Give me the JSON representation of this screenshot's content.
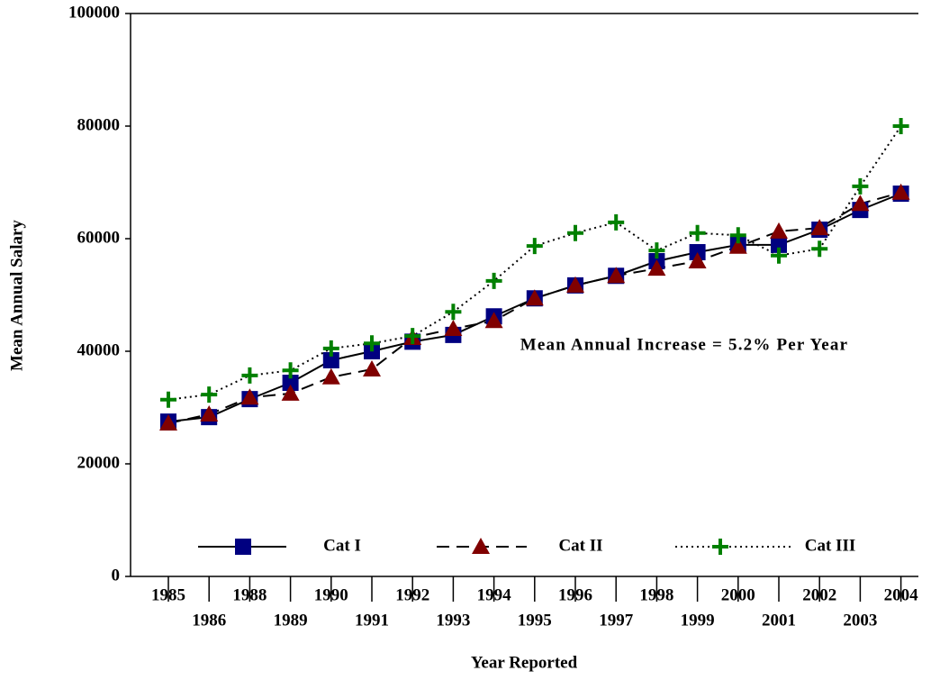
{
  "chart_data": {
    "type": "line",
    "y_label": "Mean Annual Salary",
    "x_label": "Year Reported",
    "annotation": "Mean Annual Increase = 5.2% Per Year",
    "categories": [
      "1985",
      "1986",
      "1988",
      "1989",
      "1990",
      "1991",
      "1992",
      "1993",
      "1994",
      "1995",
      "1996",
      "1997",
      "1998",
      "1999",
      "2000",
      "2001",
      "2002",
      "2003",
      "2004"
    ],
    "series": [
      {
        "name": "Cat I",
        "color": "#000080",
        "line_style": "solid",
        "marker": "square",
        "values": [
          27500,
          28300,
          31500,
          34400,
          38400,
          40000,
          41700,
          42900,
          46200,
          49400,
          51700,
          53400,
          56000,
          57600,
          58900,
          58900,
          61600,
          65100,
          68000
        ]
      },
      {
        "name": "Cat II",
        "color": "#800000",
        "line_style": "dashed",
        "marker": "triangle",
        "values": [
          27200,
          28800,
          31800,
          32500,
          35400,
          36800,
          42400,
          44000,
          45400,
          49400,
          51700,
          53400,
          54700,
          56000,
          58600,
          61300,
          61900,
          66200,
          68200
        ]
      },
      {
        "name": "Cat III",
        "color": "#008000",
        "line_style": "dotted",
        "marker": "plus",
        "values": [
          31400,
          32300,
          35700,
          36600,
          40500,
          41400,
          42700,
          47000,
          52500,
          58700,
          61000,
          62900,
          57900,
          61000,
          60600,
          57000,
          58200,
          69300,
          80000
        ]
      }
    ],
    "ylim": [
      0,
      100000
    ],
    "yticks": [
      0,
      20000,
      40000,
      60000,
      80000,
      100000
    ]
  }
}
